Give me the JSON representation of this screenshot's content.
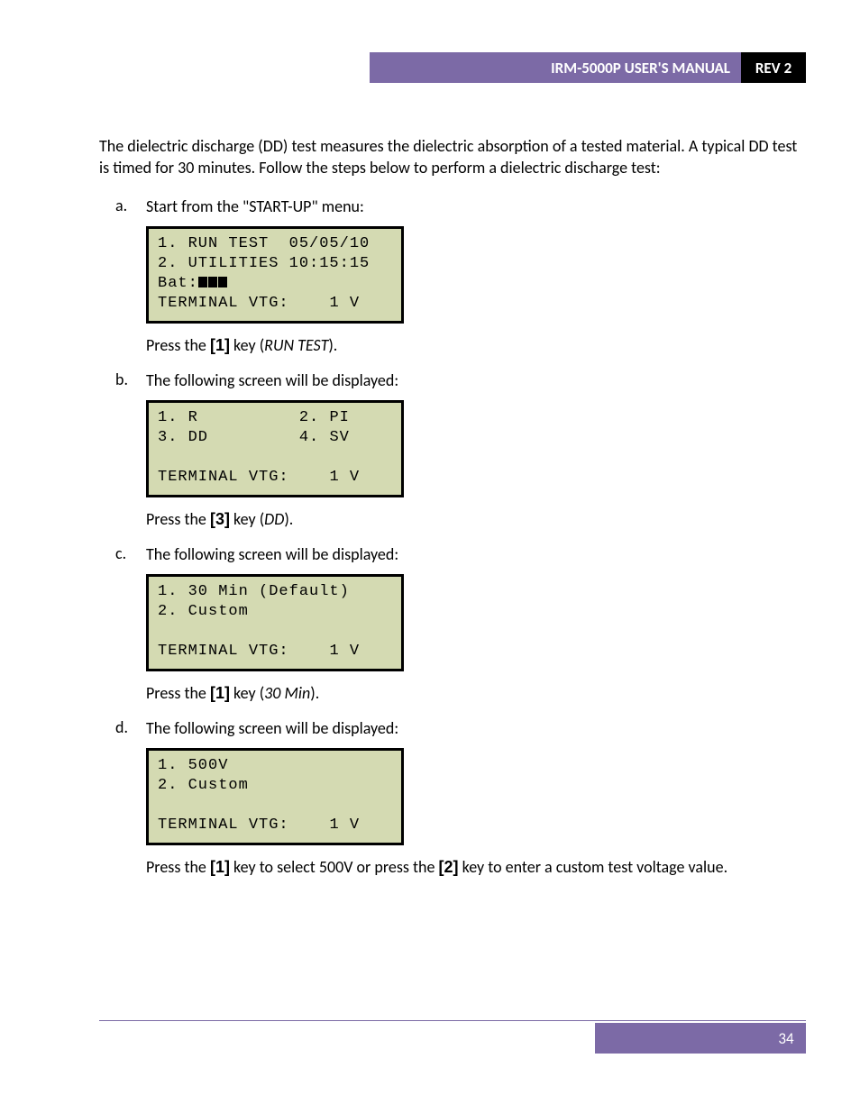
{
  "header": {
    "title": "IRM-5000P USER'S MANUAL",
    "rev": "REV 2",
    "title_bg": "#7c6aa6",
    "rev_bg": "#000000",
    "text_color": "#ffffff"
  },
  "intro": "The dielectric discharge (DD) test measures the dielectric absorption of a tested material. A typical DD test is timed for 30 minutes. Follow the steps below to perform a dielectric discharge test:",
  "steps": [
    {
      "marker": "a.",
      "lead": "Start from the \"START-UP\" menu:",
      "lcd": {
        "bg": "#d4dab2",
        "border": "#000000",
        "line1_left": "1. RUN TEST",
        "line1_right": "05/05/10",
        "line2_left": "2. UTILITIES",
        "line2_right": "10:15:15",
        "line3_left": "Bat:",
        "line3_bars": 3,
        "line4_left": "TERMINAL VTG:",
        "line4_right": "1 V"
      },
      "after_pre": "Press the ",
      "after_key": "[1]",
      "after_mid": " key (",
      "after_ital": "RUN TEST",
      "after_post": ")."
    },
    {
      "marker": "b.",
      "lead": "The following screen will be displayed:",
      "lcd": {
        "bg": "#d4dab2",
        "border": "#000000",
        "line1_left": "1. R",
        "line1_right": "2. PI",
        "line2_left": "3. DD",
        "line2_right": "4. SV",
        "line3_blank": " ",
        "line4_left": "TERMINAL VTG:",
        "line4_right": "1 V"
      },
      "after_pre": "Press the ",
      "after_key": "[3]",
      "after_mid": " key (",
      "after_ital": "DD",
      "after_post": ")."
    },
    {
      "marker": "c.",
      "lead": "The following screen will be displayed:",
      "lcd": {
        "bg": "#d4dab2",
        "border": "#000000",
        "line1": "1. 30 Min (Default)",
        "line2": "2. Custom",
        "line3_blank": " ",
        "line4_left": "TERMINAL VTG:",
        "line4_right": "1 V"
      },
      "after_pre": "Press the ",
      "after_key": "[1]",
      "after_mid": " key (",
      "after_ital": "30 Min",
      "after_post": ")."
    },
    {
      "marker": "d.",
      "lead": "The following screen will be displayed:",
      "lcd": {
        "bg": "#d4dab2",
        "border": "#000000",
        "line1": "1. 500V",
        "line2": "2. Custom",
        "line3_blank": " ",
        "line4_left": "TERMINAL VTG:",
        "line4_right": "1 V"
      },
      "after2_pre": "Press the ",
      "after2_key1": "[1]",
      "after2_mid1": " key to select 500V or press the ",
      "after2_key2": "[2]",
      "after2_mid2": " key to enter a custom test voltage value."
    }
  ],
  "footer": {
    "page": "34",
    "bg": "#7c6aa6",
    "text_color": "#ffffff"
  }
}
